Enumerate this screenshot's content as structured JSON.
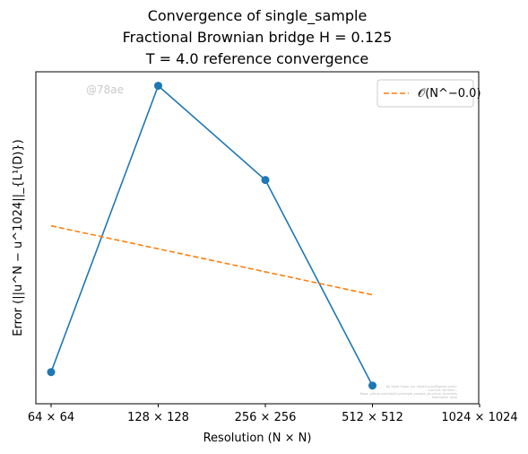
{
  "chart_data": {
    "type": "line",
    "title_lines": [
      "Convergence of single_sample",
      "Fractional Brownian bridge H = 0.125",
      "T = 4.0 reference convergence"
    ],
    "xlabel": "Resolution (N × N)",
    "ylabel": "Error (||u^N − u^1024||_{L¹(D)})",
    "x_scale": "log2",
    "x_ticks": [
      {
        "value": 64,
        "label": "64 × 64"
      },
      {
        "value": 128,
        "label": "128 × 128"
      },
      {
        "value": 256,
        "label": "256 × 256"
      },
      {
        "value": 512,
        "label": "512 × 512"
      },
      {
        "value": 1024,
        "label": "1024 × 1024"
      }
    ],
    "xlim": [
      64,
      1024
    ],
    "y_scale": "log",
    "y_ticks_shown": false,
    "ylim_relative": [
      0.3,
      1.7
    ],
    "grid": false,
    "legend_placement": "top-right",
    "series": [
      {
        "name": "",
        "color": "#1f77b4",
        "style": "solid",
        "marker": "circle",
        "x": [
          64,
          128,
          256,
          512
        ],
        "y": [
          0.354,
          1.58,
          0.966,
          0.33
        ]
      },
      {
        "name": "𝒪(N^−0.0)",
        "color": "#ff7f0e",
        "style": "dashed",
        "marker": "none",
        "x": [
          64,
          512
        ],
        "y": [
          0.76,
          0.53
        ]
      }
    ],
    "annotations": {
      "watermark": "@78ae",
      "footer_lines": [
        "By Kjetil Olsen Lye <kjetil.o.lye@gmail.com>",
        "Commit: 8a78ae...",
        "Repo: github.com/kjetil-lye/single_sample_structure_functions",
        "Hostname: local"
      ]
    }
  }
}
